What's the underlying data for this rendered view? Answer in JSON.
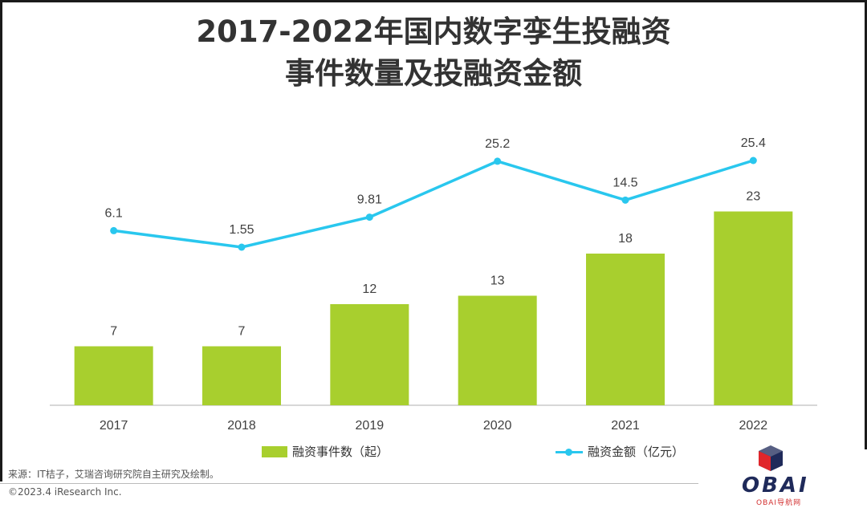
{
  "title_line1": "2017-2022年国内数字孪生投融资",
  "title_line2": "事件数量及投融资金额",
  "chart_data": {
    "type": "bar",
    "categories": [
      "2017",
      "2018",
      "2019",
      "2020",
      "2021",
      "2022"
    ],
    "series": [
      {
        "name": "融资事件数（起）",
        "type": "bar",
        "values": [
          7,
          7,
          12,
          13,
          18,
          23
        ],
        "color": "#a8cf2e"
      },
      {
        "name": "融资金额（亿元）",
        "type": "line",
        "values": [
          6.1,
          1.55,
          9.81,
          25.2,
          14.5,
          25.4
        ],
        "color": "#29c7ee"
      }
    ],
    "data_labels": {
      "bar": [
        "7",
        "7",
        "12",
        "13",
        "18",
        "23"
      ],
      "line": [
        "6.1",
        "1.55",
        "9.81",
        "25.2",
        "14.5",
        "25.4"
      ]
    },
    "grid": false,
    "legend": "bottom"
  },
  "legend": {
    "bar_label": "融资事件数（起）",
    "line_label": "融资金额（亿元）"
  },
  "footer": {
    "source": "来源：IT桔子，艾瑞咨询研究院自主研究及绘制。",
    "copyright": "©2023.4 iResearch Inc."
  },
  "watermark": {
    "text": "OBAI",
    "subtext": "OBAI导航网"
  }
}
